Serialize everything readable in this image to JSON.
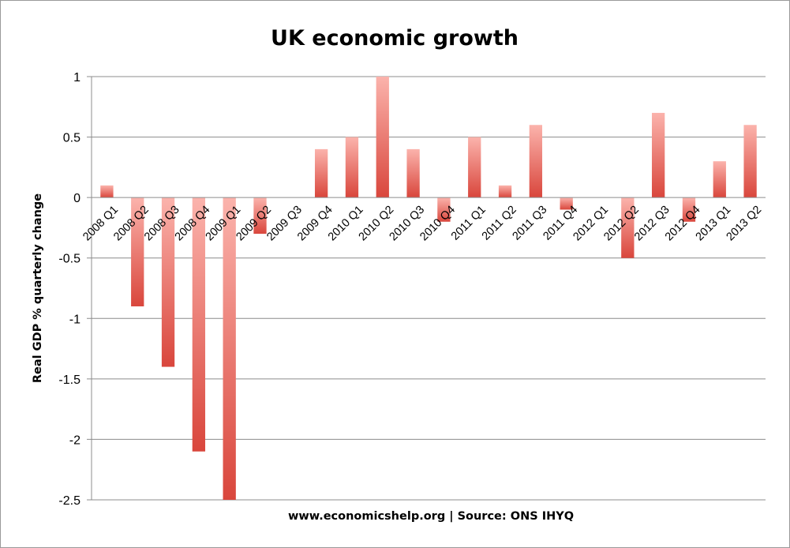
{
  "chart_data": {
    "type": "bar",
    "title": "UK economic growth",
    "ylabel": "Real GDP % quarterly change",
    "xlabel": "www.economicshelp.org | Source: ONS  IHYQ",
    "ylim": [
      -2.5,
      1
    ],
    "yticks": [
      1,
      0.5,
      0,
      -0.5,
      -1,
      -1.5,
      -2,
      -2.5
    ],
    "ytick_labels": [
      "1",
      "0.5",
      "0",
      "-0.5",
      "-1",
      "-1.5",
      "-2",
      "-2.5"
    ],
    "grid": true,
    "legend": "none",
    "categories": [
      "2008 Q1",
      "2008 Q2",
      "2008 Q3",
      "2008 Q4",
      "2009 Q1",
      "2009 Q2",
      "2009 Q3",
      "2009 Q4",
      "2010 Q1",
      "2010 Q2",
      "2010 Q3",
      "2010 Q4",
      "2011 Q1",
      "2011 Q2",
      "2011 Q3",
      "2011 Q4",
      "2012 Q1",
      "2012 Q2",
      "2012 Q3",
      "2012 Q4",
      "2013 Q1",
      "2013 Q2"
    ],
    "values": [
      0.1,
      -0.9,
      -1.4,
      -2.1,
      -2.5,
      -0.3,
      0,
      0.4,
      0.5,
      1.0,
      0.4,
      -0.2,
      0.5,
      0.1,
      0.6,
      -0.1,
      0,
      -0.5,
      0.7,
      -0.2,
      0.3,
      0.6
    ],
    "colors": {
      "bar_dark": "#d94f45",
      "bar_light": "#f9aca4",
      "grid": "#8c8c8c"
    }
  }
}
